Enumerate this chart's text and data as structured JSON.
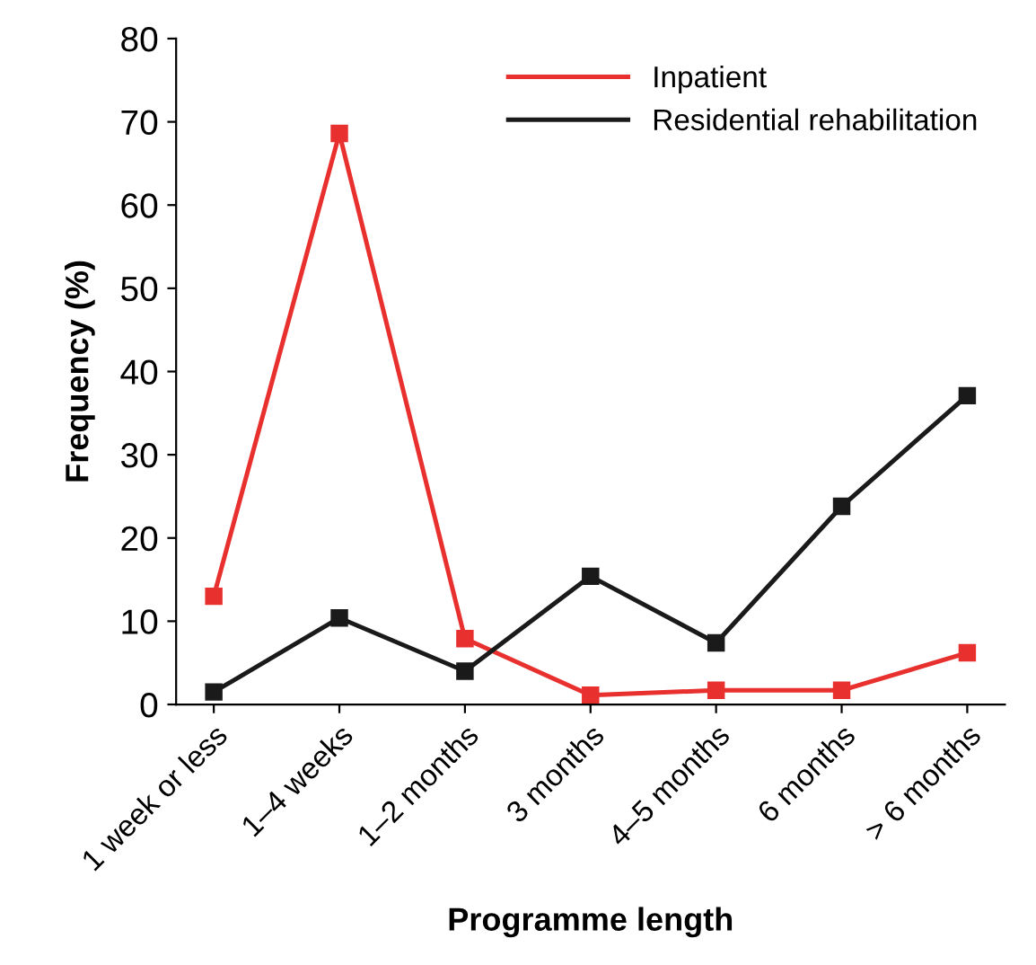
{
  "chart_data": {
    "type": "line",
    "xlabel": "Programme length",
    "ylabel": "Frequency (%)",
    "categories": [
      "1 week or less",
      "1–4 weeks",
      "1–2 months",
      "3 months",
      "4–5 months",
      "6 months",
      "> 6 months"
    ],
    "series": [
      {
        "name": "Inpatient",
        "color": "#e8312f",
        "values": [
          13.0,
          68.6,
          7.9,
          1.1,
          1.7,
          1.7,
          6.2
        ]
      },
      {
        "name": "Residential rehabilitation",
        "color": "#1a1a1a",
        "values": [
          1.5,
          10.4,
          4.0,
          15.4,
          7.4,
          23.8,
          37.1
        ]
      }
    ],
    "ylim": [
      0,
      80
    ],
    "yticks": [
      0,
      10,
      20,
      30,
      40,
      50,
      60,
      70,
      80
    ],
    "grid": false,
    "legend": "top right",
    "marker": "square",
    "line_style": "solid"
  }
}
